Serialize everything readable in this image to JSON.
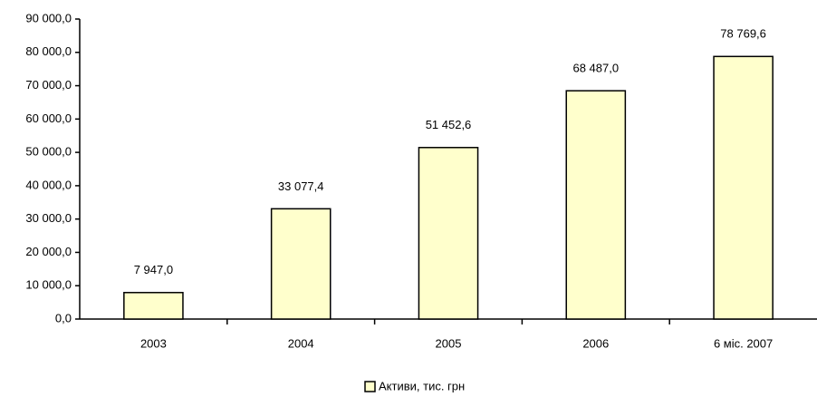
{
  "chart_data": {
    "type": "bar",
    "categories": [
      "2003",
      "2004",
      "2005",
      "2006",
      "6 міс. 2007"
    ],
    "series": [
      {
        "name": "Активи, тис. грн",
        "color": "#ffffcc",
        "values": [
          7947.0,
          33077.4,
          51452.6,
          68487.0,
          78769.6
        ],
        "value_labels": [
          "7 947,0",
          "33 077,4",
          "51 452,6",
          "68 487,0",
          "78 769,6"
        ]
      }
    ],
    "ylim": [
      0,
      90000
    ],
    "yticks": [
      {
        "value": 0,
        "label": "0,0"
      },
      {
        "value": 10000,
        "label": "10 000,0"
      },
      {
        "value": 20000,
        "label": "20 000,0"
      },
      {
        "value": 30000,
        "label": "30 000,0"
      },
      {
        "value": 40000,
        "label": "40 000,0"
      },
      {
        "value": 50000,
        "label": "50 000,0"
      },
      {
        "value": 60000,
        "label": "60 000,0"
      },
      {
        "value": 70000,
        "label": "70 000,0"
      },
      {
        "value": 80000,
        "label": "80 000,0"
      },
      {
        "value": 90000,
        "label": "90 000,0"
      }
    ],
    "grid": false,
    "legend": "bottom"
  }
}
